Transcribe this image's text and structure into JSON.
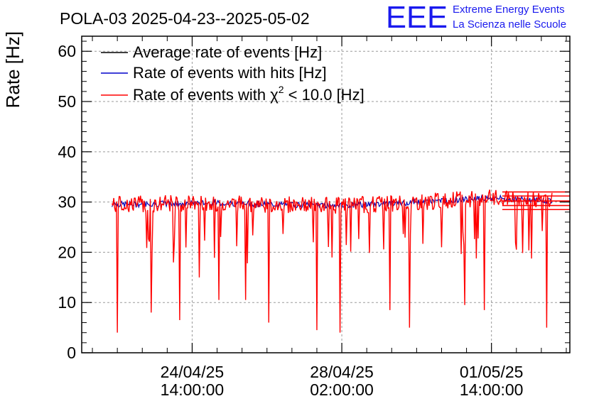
{
  "chart_data": {
    "type": "line",
    "title": "POLA-03 2025-04-23--2025-05-02",
    "ylabel": "Rate [Hz]",
    "xlabel": "",
    "ylim": [
      0,
      63
    ],
    "yticks": [
      0,
      10,
      20,
      30,
      40,
      50,
      60
    ],
    "xlim": [
      "2025-04-22T00:00:00",
      "2025-05-03T10:00:00"
    ],
    "xticks": [
      {
        "time": "2025-04-24T14:00:00",
        "date": "24/04/25",
        "clock": "14:00:00"
      },
      {
        "time": "2025-04-28T02:00:00",
        "date": "28/04/25",
        "clock": "02:00:00"
      },
      {
        "time": "2025-05-01T14:00:00",
        "date": "01/05/25",
        "clock": "14:00:00"
      }
    ],
    "grid": true,
    "legend_position": "top-left",
    "series": [
      {
        "name": "Average rate of events [Hz]",
        "color": "#000000"
      },
      {
        "name": "Rate of events with hits [Hz]",
        "color": "#0000cc"
      },
      {
        "name": "Rate of events with χ² < 10.0 [Hz]",
        "color": "#ff0000",
        "name_parts": {
          "pre": "Rate of events with χ",
          "sup": "2",
          "post": " < 10.0 [Hz]"
        }
      }
    ],
    "data_range": [
      "2025-04-22T17:00:00",
      "2025-05-03T00:00:00"
    ],
    "baseline": [
      {
        "time": "2025-04-22T17:00:00",
        "rate": 29.5
      },
      {
        "time": "2025-04-25T00:00:00",
        "rate": 29.8
      },
      {
        "time": "2025-04-28T00:00:00",
        "rate": 29.3
      },
      {
        "time": "2025-04-29T12:00:00",
        "rate": 29.8
      },
      {
        "time": "2025-04-30T12:00:00",
        "rate": 30.3
      },
      {
        "time": "2025-05-01T12:00:00",
        "rate": 30.8
      },
      {
        "time": "2025-05-03T00:00:00",
        "rate": 30.3
      }
    ],
    "dips": [
      {
        "time": "2025-04-22T20:00:00",
        "rate": 4
      },
      {
        "time": "2025-04-23T15:00:00",
        "rate": 8
      },
      {
        "time": "2025-04-24T07:00:00",
        "rate": 6.5
      },
      {
        "time": "2025-04-24T18:00:00",
        "rate": 15
      },
      {
        "time": "2025-04-25T05:00:00",
        "rate": 10.5
      },
      {
        "time": "2025-04-25T20:00:00",
        "rate": 10.5
      },
      {
        "time": "2025-04-26T09:00:00",
        "rate": 6
      },
      {
        "time": "2025-04-27T12:00:00",
        "rate": 4.5
      },
      {
        "time": "2025-04-28T01:00:00",
        "rate": 4
      },
      {
        "time": "2025-04-29T05:00:00",
        "rate": 8.5
      },
      {
        "time": "2025-04-29T16:00:00",
        "rate": 5
      },
      {
        "time": "2025-04-30T23:00:00",
        "rate": 9.5
      },
      {
        "time": "2025-05-01T10:00:00",
        "rate": 8.5
      },
      {
        "time": "2025-05-02T21:00:00",
        "rate": 5
      }
    ],
    "tail_levels": [
      28.5,
      29.3,
      30.2,
      31.2,
      32
    ]
  },
  "logo": {
    "text": "EEE",
    "line1": "Extreme Energy Events",
    "line2": "La Scienza nelle Scuole",
    "color": "#1a1aee"
  }
}
